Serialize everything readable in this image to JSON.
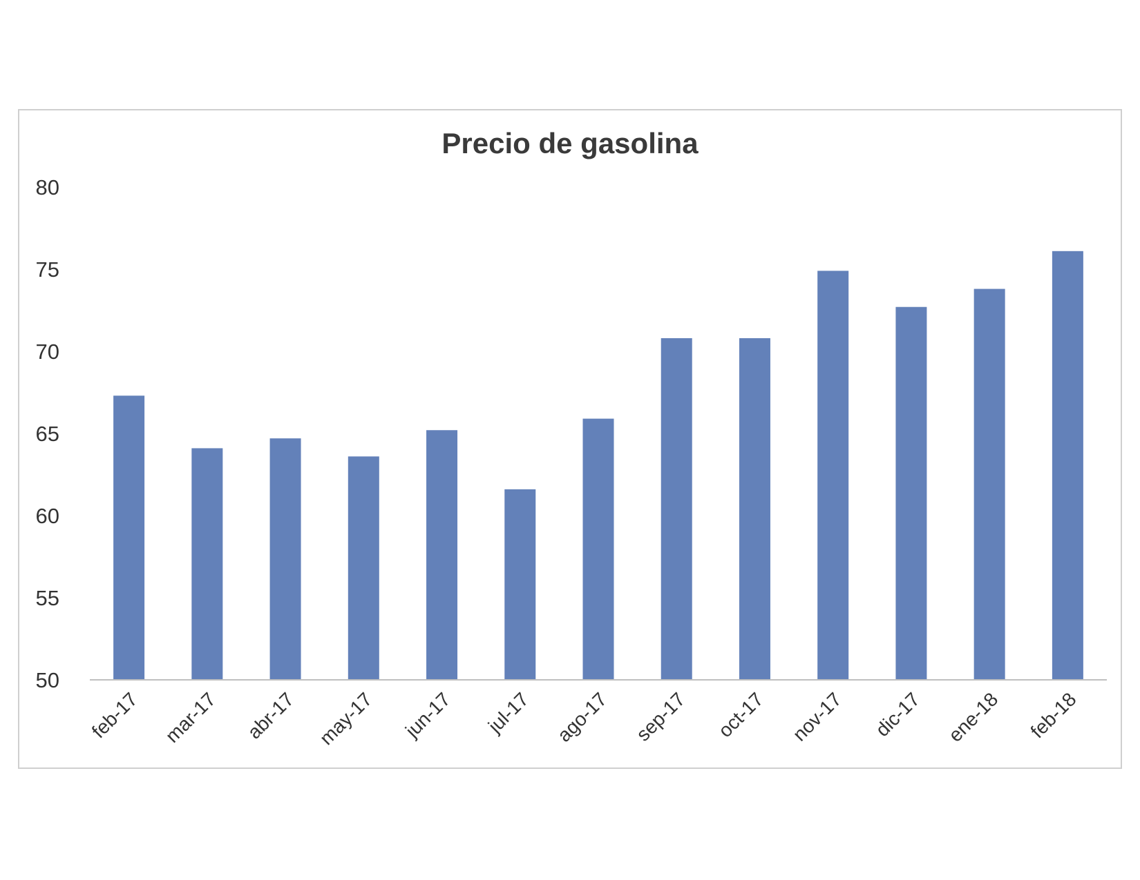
{
  "chart_data": {
    "type": "bar",
    "title": "Precio de gasolina",
    "xlabel": "",
    "ylabel": "",
    "categories": [
      "feb-17",
      "mar-17",
      "abr-17",
      "may-17",
      "jun-17",
      "jul-17",
      "ago-17",
      "sep-17",
      "oct-17",
      "nov-17",
      "dic-17",
      "ene-18",
      "feb-18"
    ],
    "values": [
      67.3,
      64.1,
      64.7,
      63.6,
      65.2,
      61.6,
      65.9,
      70.8,
      70.8,
      74.9,
      72.7,
      73.8,
      76.1
    ],
    "ylim": [
      50,
      80
    ],
    "yticks": [
      "50",
      "55",
      "60",
      "65",
      "70",
      "75",
      "80"
    ],
    "grid": false,
    "legend": "none",
    "bar_color": "#6381b9",
    "axis_color": "#bfbfbf"
  }
}
